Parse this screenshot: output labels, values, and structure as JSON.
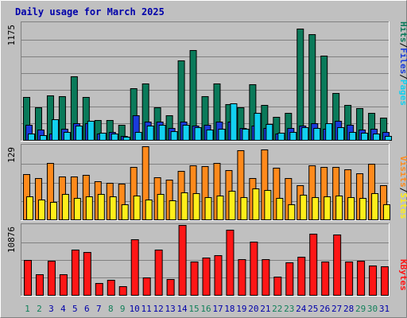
{
  "title": "Daily usage for March 2025",
  "colors": {
    "background": "#c0c0c0",
    "title_text": "#0000aa",
    "hits": "#0a7a5a",
    "files": "#1a3bdb",
    "pages": "#12d0f0",
    "visits": "#ff8a1c",
    "sites": "#ffee1a",
    "kbytes": "#ff1616",
    "weekend_label": "#12805a",
    "weekday_label": "#0000aa"
  },
  "chart_data": [
    {
      "type": "bar",
      "title": "Daily usage for March 2025",
      "ymax_label": "1175",
      "ylim": [
        0,
        1175
      ],
      "right_labels": [
        "Pages",
        "Files",
        "Hits"
      ],
      "x": [
        "1",
        "2",
        "3",
        "4",
        "5",
        "6",
        "7",
        "8",
        "9",
        "10",
        "11",
        "12",
        "13",
        "14",
        "15",
        "16",
        "17",
        "18",
        "19",
        "20",
        "21",
        "22",
        "23",
        "24",
        "25",
        "26",
        "27",
        "28",
        "29",
        "30",
        "31"
      ],
      "series": [
        {
          "name": "Hits",
          "values": [
            430,
            330,
            450,
            440,
            640,
            430,
            200,
            200,
            150,
            520,
            570,
            330,
            250,
            800,
            900,
            440,
            570,
            360,
            330,
            560,
            350,
            230,
            270,
            1120,
            1060,
            850,
            470,
            350,
            320,
            270,
            220
          ]
        },
        {
          "name": "Files",
          "values": [
            150,
            100,
            60,
            110,
            170,
            170,
            60,
            80,
            40,
            250,
            180,
            180,
            120,
            180,
            140,
            150,
            180,
            180,
            120,
            140,
            120,
            60,
            120,
            140,
            170,
            110,
            190,
            150,
            100,
            110,
            80
          ]
        },
        {
          "name": "Pages",
          "values": [
            60,
            50,
            210,
            80,
            140,
            190,
            70,
            60,
            30,
            80,
            140,
            150,
            90,
            150,
            130,
            100,
            110,
            370,
            110,
            270,
            160,
            70,
            80,
            130,
            120,
            170,
            130,
            80,
            70,
            60,
            40
          ]
        }
      ]
    },
    {
      "type": "bar",
      "ymax_label": "129",
      "ylim": [
        0,
        129
      ],
      "right_labels": [
        "Sites",
        "Visits"
      ],
      "x": [
        "1",
        "2",
        "3",
        "4",
        "5",
        "6",
        "7",
        "8",
        "9",
        "10",
        "11",
        "12",
        "13",
        "14",
        "15",
        "16",
        "17",
        "18",
        "19",
        "20",
        "21",
        "22",
        "23",
        "24",
        "25",
        "26",
        "27",
        "28",
        "29",
        "30",
        "31"
      ],
      "series": [
        {
          "name": "Visits",
          "values": [
            79,
            72,
            98,
            75,
            75,
            78,
            67,
            64,
            62,
            91,
            128,
            73,
            69,
            85,
            94,
            93,
            98,
            86,
            120,
            72,
            122,
            90,
            72,
            59,
            95,
            91,
            91,
            88,
            80,
            97,
            60
          ]
        },
        {
          "name": "Sites",
          "values": [
            40,
            34,
            30,
            44,
            37,
            40,
            44,
            40,
            26,
            41,
            34,
            44,
            33,
            47,
            46,
            39,
            42,
            50,
            39,
            54,
            52,
            38,
            26,
            43,
            39,
            40,
            42,
            39,
            38,
            46,
            26
          ]
        }
      ]
    },
    {
      "type": "bar",
      "ymax_label": "10876",
      "ylim": [
        0,
        10876
      ],
      "right_labels": [
        "KBytes"
      ],
      "x": [
        "1",
        "2",
        "3",
        "4",
        "5",
        "6",
        "7",
        "8",
        "9",
        "10",
        "11",
        "12",
        "13",
        "14",
        "15",
        "16",
        "17",
        "18",
        "19",
        "20",
        "21",
        "22",
        "23",
        "24",
        "25",
        "26",
        "27",
        "28",
        "29",
        "30",
        "31"
      ],
      "series": [
        {
          "name": "KBytes",
          "values": [
            5400,
            3180,
            5350,
            3180,
            7070,
            6720,
            1900,
            2320,
            1380,
            8700,
            2660,
            7070,
            2480,
            10876,
            5200,
            5750,
            6160,
            10110,
            5510,
            8270,
            5550,
            2790,
            5080,
            5950,
            9460,
            5200,
            9350,
            5210,
            5370,
            4530,
            4460
          ]
        }
      ]
    }
  ],
  "day_labels": [
    {
      "text": "1",
      "weekend": true
    },
    {
      "text": "2",
      "weekend": true
    },
    {
      "text": "3",
      "weekend": false
    },
    {
      "text": "4",
      "weekend": false
    },
    {
      "text": "5",
      "weekend": false
    },
    {
      "text": "6",
      "weekend": false
    },
    {
      "text": "7",
      "weekend": false
    },
    {
      "text": "8",
      "weekend": true
    },
    {
      "text": "9",
      "weekend": true
    },
    {
      "text": "10",
      "weekend": false
    },
    {
      "text": "11",
      "weekend": false
    },
    {
      "text": "12",
      "weekend": false
    },
    {
      "text": "13",
      "weekend": false
    },
    {
      "text": "14",
      "weekend": false
    },
    {
      "text": "15",
      "weekend": true
    },
    {
      "text": "16",
      "weekend": true
    },
    {
      "text": "17",
      "weekend": false
    },
    {
      "text": "18",
      "weekend": false
    },
    {
      "text": "19",
      "weekend": false
    },
    {
      "text": "20",
      "weekend": false
    },
    {
      "text": "21",
      "weekend": false
    },
    {
      "text": "22",
      "weekend": true
    },
    {
      "text": "23",
      "weekend": true
    },
    {
      "text": "24",
      "weekend": false
    },
    {
      "text": "25",
      "weekend": false
    },
    {
      "text": "26",
      "weekend": false
    },
    {
      "text": "27",
      "weekend": false
    },
    {
      "text": "28",
      "weekend": false
    },
    {
      "text": "29",
      "weekend": true
    },
    {
      "text": "30",
      "weekend": true
    },
    {
      "text": "31",
      "weekend": false
    }
  ]
}
